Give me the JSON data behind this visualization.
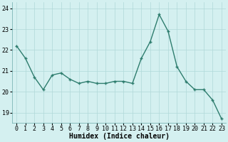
{
  "x": [
    0,
    1,
    2,
    3,
    4,
    5,
    6,
    7,
    8,
    9,
    10,
    11,
    12,
    13,
    14,
    15,
    16,
    17,
    18,
    19,
    20,
    21,
    22,
    23
  ],
  "y": [
    22.2,
    21.6,
    20.7,
    20.1,
    20.8,
    20.9,
    20.6,
    20.4,
    20.5,
    20.4,
    20.4,
    20.5,
    20.5,
    20.4,
    21.6,
    22.4,
    23.7,
    22.9,
    21.2,
    20.5,
    20.1,
    20.1,
    19.6,
    18.7
  ],
  "line_color": "#2e7d6e",
  "marker": "+",
  "markersize": 3.5,
  "linewidth": 1.0,
  "bg_color": "#d4f0f0",
  "grid_color": "#b0d8d8",
  "xlabel": "Humidex (Indice chaleur)",
  "ylim": [
    18.5,
    24.3
  ],
  "xlim": [
    -0.5,
    23.5
  ],
  "yticks": [
    19,
    20,
    21,
    22,
    23,
    24
  ],
  "xticks": [
    0,
    1,
    2,
    3,
    4,
    5,
    6,
    7,
    8,
    9,
    10,
    11,
    12,
    13,
    14,
    15,
    16,
    17,
    18,
    19,
    20,
    21,
    22,
    23
  ],
  "xlabel_fontsize": 7,
  "tick_fontsize": 6,
  "fig_width": 3.2,
  "fig_height": 2.0,
  "dpi": 100
}
